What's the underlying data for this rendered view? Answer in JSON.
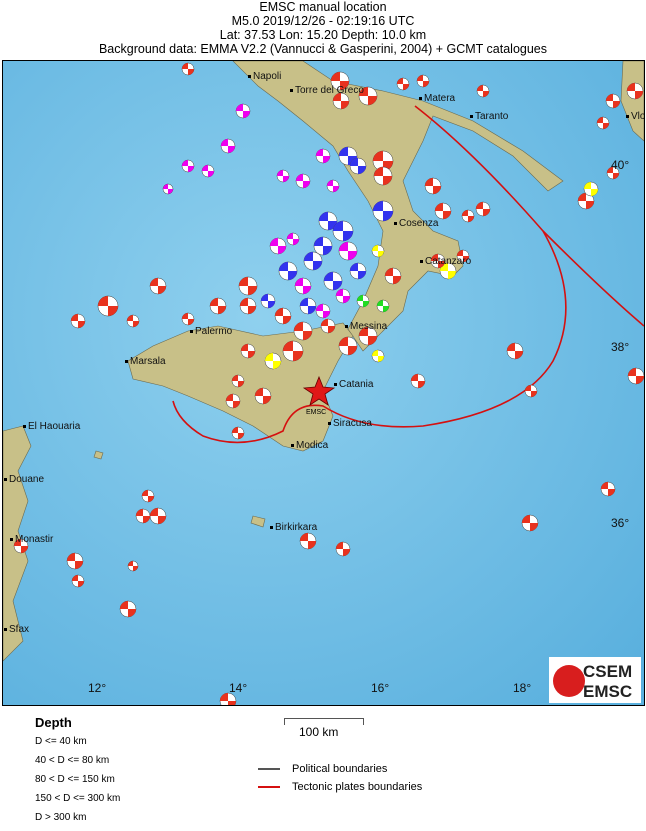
{
  "header": {
    "title": "EMSC manual location",
    "event": "M5.0  2019/12/26 - 02:19:16 UTC",
    "location": "Lat: 37.53    Lon:  15.20     Depth:  10.0 km",
    "background": "Background data: EMMA V2.2 (Vannucci & Gasperini, 2004) + GCMT catalogues"
  },
  "map": {
    "cities": [
      "Napoli",
      "Torre del Greco",
      "Matera",
      "Taranto",
      "Cosenza",
      "Catanzaro",
      "Palermo",
      "Messina",
      "Marsala",
      "Catania",
      "Siracusa",
      "Modica",
      "El Haouaria",
      "Douane",
      "Monastir",
      "Sfax",
      "Birkirkara",
      "Vlo"
    ],
    "lat_labels": [
      "40°",
      "38°",
      "36°"
    ],
    "lon_labels": [
      "12°",
      "14°",
      "16°",
      "18°"
    ],
    "epicenter_label": "EMSC",
    "colors": {
      "sea": "#7cc3e6",
      "land": "#c9c28a",
      "plate_boundary": "#e01010",
      "shallow": "#e8321e",
      "intermediate_40_80": "#ffff00",
      "intermediate_80_150": "#22dd22",
      "deep_150_300": "#3333ee",
      "deep_300": "#ee00ee"
    }
  },
  "legend": {
    "title": "Depth",
    "items": [
      "D <= 40 km",
      "40 < D <= 80 km",
      "80 < D <= 150 km",
      "150 < D <= 300 km",
      "D > 300 km"
    ],
    "scale": "100 km",
    "political": "Political boundaries",
    "tectonic": "Tectonic plates boundaries"
  },
  "logo": {
    "line1": "CSEM",
    "line2": "EMSC"
  }
}
